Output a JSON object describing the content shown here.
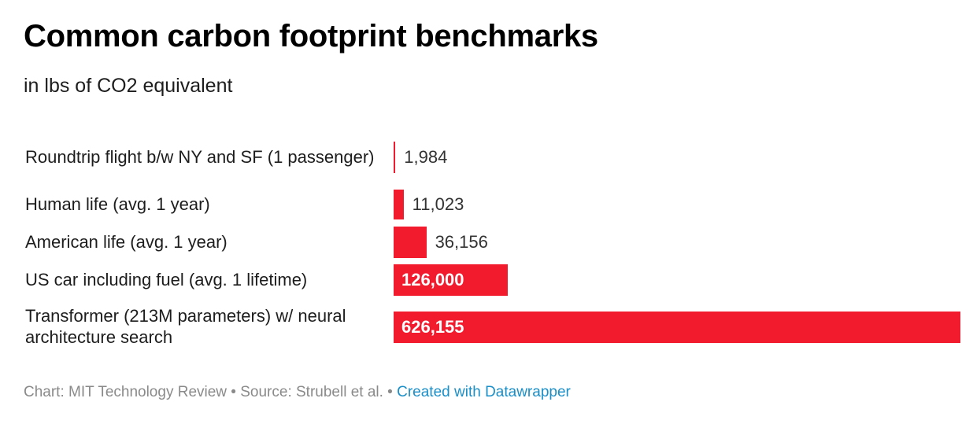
{
  "chart_data": {
    "type": "bar",
    "orientation": "horizontal",
    "title": "Common carbon footprint benchmarks",
    "subtitle": "in lbs of CO2 equivalent",
    "categories": [
      "Roundtrip flight b/w NY and SF (1 passenger)",
      "Human life (avg. 1 year)",
      "American life (avg. 1 year)",
      "US car including fuel (avg. 1 lifetime)",
      "Transformer (213M parameters) w/ neural architecture search"
    ],
    "values": [
      1984,
      11023,
      36156,
      126000,
      626155
    ],
    "value_labels": [
      "1,984",
      "11,023",
      "36,156",
      "126,000",
      "626,155"
    ],
    "xlim": [
      0,
      626155
    ],
    "grid": false,
    "bar_color": "#f21b2d"
  },
  "footer": {
    "chart_credit": "Chart: MIT Technology Review",
    "separator": " • ",
    "source": "Source: Strubell et al.",
    "created_with": "Created with Datawrapper"
  },
  "colors": {
    "footer_text": "#8a8a8a",
    "link": "#1a8fc8"
  }
}
